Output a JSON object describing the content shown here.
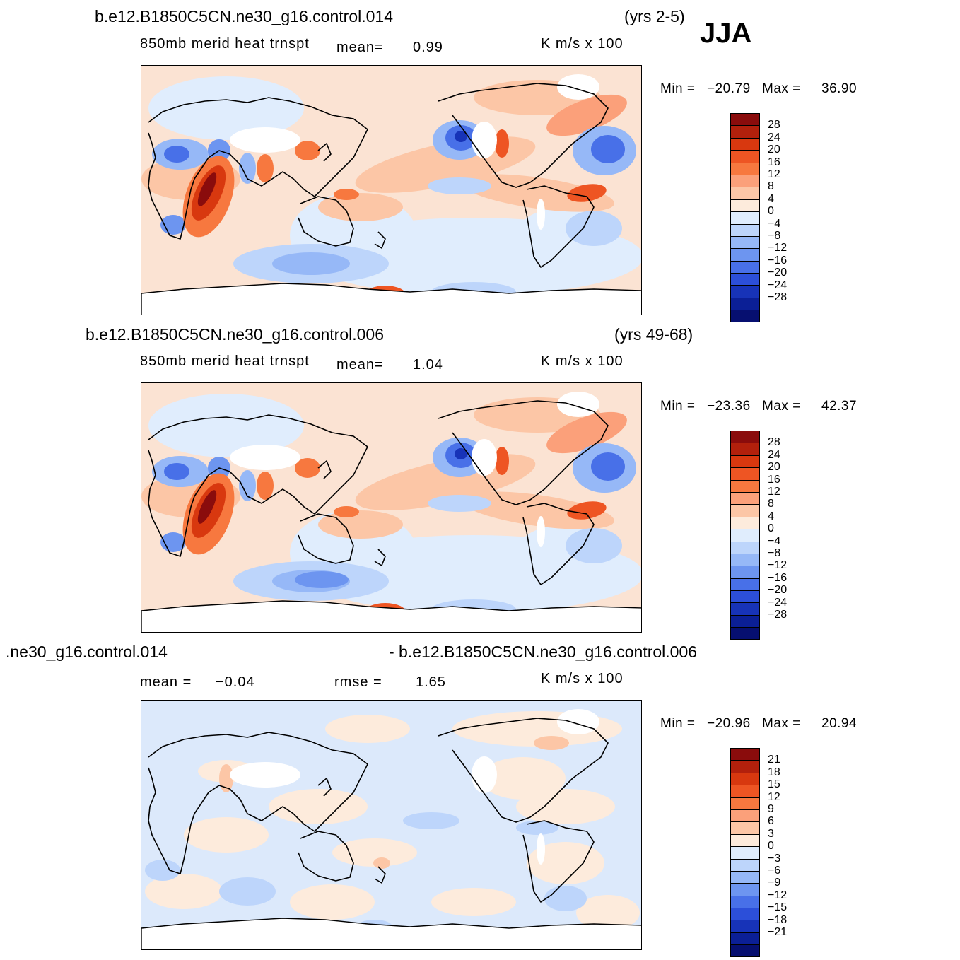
{
  "season": "JJA",
  "units": "K  m/s  x  100",
  "panels": [
    {
      "case": "b.e12.B1850C5CN.ne30_g16.control.014",
      "years": "(yrs 2-5)",
      "field": "850mb  merid  heat  trnspt",
      "stat1_label": "mean=",
      "stat1_value": "0.99",
      "min_label": "Min  =",
      "min_value": "−20.79",
      "max_label": "Max  =",
      "max_value": "36.90"
    },
    {
      "case": "b.e12.B1850C5CN.ne30_g16.control.006",
      "years": "(yrs 49-68)",
      "field": "850mb  merid  heat  trnspt",
      "stat1_label": "mean=",
      "stat1_value": "1.04",
      "min_label": "Min  =",
      "min_value": "−23.36",
      "max_label": "Max  =",
      "max_value": "42.37"
    },
    {
      "case_left": ".ne30_g16.control.014",
      "case_right": "- b.e12.B1850C5CN.ne30_g16.control.006",
      "stat1_label": "mean  =",
      "stat1_value": "−0.04",
      "stat2_label": "rmse  =",
      "stat2_value": "1.65",
      "min_label": "Min  =",
      "min_value": "−20.96",
      "max_label": "Max  =",
      "max_value": "20.94"
    }
  ],
  "colorbar_colors": [
    "#8a0c0c",
    "#b2200c",
    "#d8380f",
    "#ee5523",
    "#f7783f",
    "#fba07a",
    "#fcc6a6",
    "#fdebdc",
    "#e0edfd",
    "#bdd5fb",
    "#96b8f7",
    "#6d95f0",
    "#4870e8",
    "#2c4fd9",
    "#1733b8",
    "#0b1f96",
    "#060f70"
  ],
  "colorbar_labels_main": [
    "28",
    "24",
    "20",
    "16",
    "12",
    "8",
    "4",
    "0",
    "−4",
    "−8",
    "−12",
    "−16",
    "−20",
    "−24",
    "−28"
  ],
  "colorbar_labels_diff": [
    "21",
    "18",
    "15",
    "12",
    "9",
    "6",
    "3",
    "0",
    "−3",
    "−6",
    "−9",
    "−12",
    "−15",
    "−18",
    "−21"
  ],
  "chart_data": [
    {
      "type": "heatmap",
      "title": "b.e12.B1850C5CN.ne30_g16.control.014 (yrs 2-5) JJA",
      "field": "850mb merid heat trnspt",
      "units": "K m/s x 100",
      "mean": 0.99,
      "min": -20.79,
      "max": 36.9,
      "contour_levels": [
        -28,
        -24,
        -20,
        -16,
        -12,
        -8,
        -4,
        0,
        4,
        8,
        12,
        16,
        20,
        24,
        28
      ]
    },
    {
      "type": "heatmap",
      "title": "b.e12.B1850C5CN.ne30_g16.control.006 (yrs 49-68)",
      "field": "850mb merid heat trnspt",
      "units": "K m/s x 100",
      "mean": 1.04,
      "min": -23.36,
      "max": 42.37,
      "contour_levels": [
        -28,
        -24,
        -20,
        -16,
        -12,
        -8,
        -4,
        0,
        4,
        8,
        12,
        16,
        20,
        24,
        28
      ]
    },
    {
      "type": "heatmap",
      "title": ".ne30_g16.control.014 - b.e12.B1850C5CN.ne30_g16.control.006",
      "units": "K m/s x 100",
      "mean": -0.04,
      "rmse": 1.65,
      "min": -20.96,
      "max": 20.94,
      "contour_levels": [
        -21,
        -18,
        -15,
        -12,
        -9,
        -6,
        -3,
        0,
        3,
        6,
        9,
        12,
        15,
        18,
        21
      ]
    }
  ]
}
